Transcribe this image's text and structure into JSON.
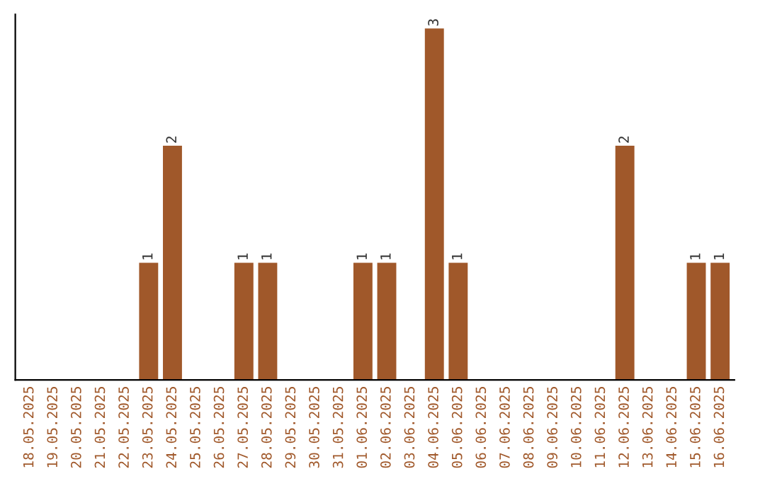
{
  "chart_data": {
    "type": "bar",
    "categories": [
      "18.05.2025",
      "19.05.2025",
      "20.05.2025",
      "21.05.2025",
      "22.05.2025",
      "23.05.2025",
      "24.05.2025",
      "25.05.2025",
      "26.05.2025",
      "27.05.2025",
      "28.05.2025",
      "29.05.2025",
      "30.05.2025",
      "31.05.2025",
      "01.06.2025",
      "02.06.2025",
      "03.06.2025",
      "04.06.2025",
      "05.06.2025",
      "06.06.2025",
      "07.06.2025",
      "08.06.2025",
      "09.06.2025",
      "10.06.2025",
      "11.06.2025",
      "12.06.2025",
      "13.06.2025",
      "14.06.2025",
      "15.06.2025",
      "16.06.2025"
    ],
    "values": [
      0,
      0,
      0,
      0,
      0,
      1,
      2,
      0,
      0,
      1,
      1,
      0,
      0,
      0,
      1,
      1,
      0,
      3,
      1,
      0,
      0,
      0,
      0,
      0,
      0,
      2,
      0,
      0,
      1,
      1
    ],
    "value_labels": [
      null,
      null,
      null,
      null,
      null,
      "1",
      "2",
      null,
      null,
      "1",
      "1",
      null,
      null,
      null,
      "1",
      "1",
      null,
      "3",
      "1",
      null,
      null,
      null,
      null,
      null,
      null,
      "2",
      null,
      null,
      "1",
      "1"
    ],
    "color": "#a0582a",
    "tick_labels": "x",
    "grid": false
  }
}
